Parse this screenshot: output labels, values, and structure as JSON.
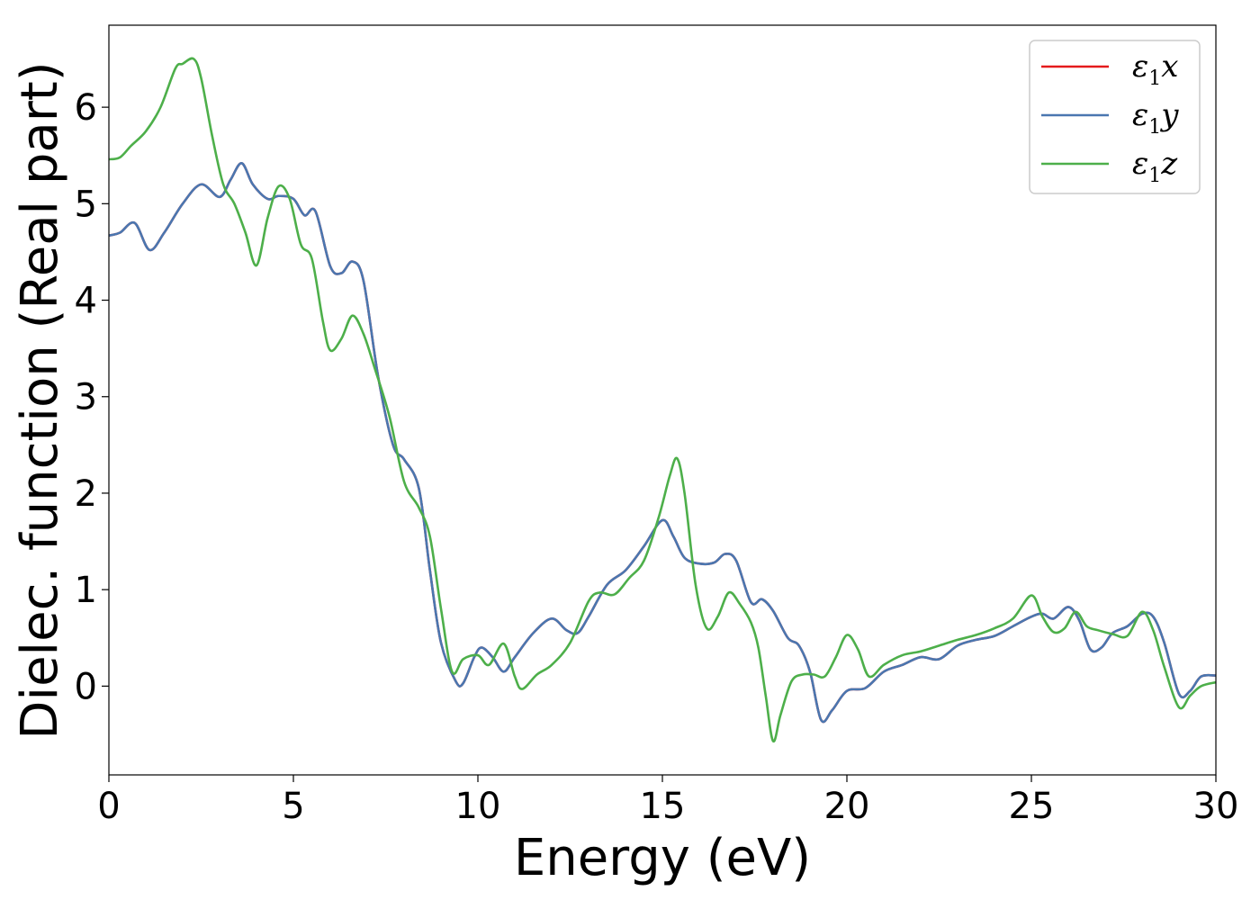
{
  "chart_data": {
    "type": "line",
    "xlabel": "Energy (eV)",
    "ylabel": "Dielec. function (Real part)",
    "xlim": [
      0,
      30
    ],
    "ylim": [
      -0.92,
      6.85
    ],
    "xticks": [
      0,
      5,
      10,
      15,
      20,
      25,
      30
    ],
    "yticks": [
      0,
      1,
      2,
      3,
      4,
      5,
      6
    ],
    "grid": false,
    "legend_position": "top-right",
    "series": [
      {
        "name": "ε1x",
        "legend_main": "ε",
        "legend_sub": "1",
        "legend_var": "x",
        "color": "#e41a1c",
        "x": [
          0,
          0.3,
          0.7,
          1.1,
          1.5,
          2.0,
          2.5,
          3.0,
          3.3,
          3.6,
          3.9,
          4.3,
          4.6,
          5.0,
          5.3,
          5.6,
          6.0,
          6.3,
          6.6,
          6.9,
          7.3,
          7.7,
          8.0,
          8.4,
          8.7,
          9.0,
          9.4,
          9.6,
          9.9,
          10.1,
          10.4,
          10.7,
          11.0,
          11.5,
          12.0,
          12.4,
          12.7,
          13.0,
          13.5,
          14.0,
          14.5,
          15.0,
          15.3,
          15.6,
          16.0,
          16.4,
          16.7,
          17.0,
          17.4,
          17.7,
          18.0,
          18.4,
          18.7,
          19.0,
          19.3,
          19.6,
          20.0,
          20.5,
          21.0,
          21.5,
          22.0,
          22.5,
          23.0,
          23.5,
          24.0,
          24.5,
          25.0,
          25.3,
          25.6,
          26.0,
          26.3,
          26.6,
          26.9,
          27.2,
          27.6,
          28.0,
          28.3,
          28.6,
          29.0,
          29.3,
          29.6,
          30.0
        ],
        "y": [
          4.67,
          4.7,
          4.8,
          4.52,
          4.7,
          5.0,
          5.2,
          5.07,
          5.25,
          5.42,
          5.2,
          5.05,
          5.08,
          5.05,
          4.88,
          4.92,
          4.35,
          4.28,
          4.4,
          4.2,
          3.2,
          2.5,
          2.35,
          2.05,
          1.2,
          0.45,
          0.05,
          0.03,
          0.3,
          0.4,
          0.3,
          0.15,
          0.3,
          0.55,
          0.7,
          0.58,
          0.55,
          0.72,
          1.05,
          1.2,
          1.45,
          1.72,
          1.55,
          1.33,
          1.27,
          1.28,
          1.37,
          1.3,
          0.87,
          0.9,
          0.78,
          0.5,
          0.42,
          0.15,
          -0.35,
          -0.25,
          -0.05,
          -0.02,
          0.15,
          0.22,
          0.3,
          0.28,
          0.42,
          0.48,
          0.52,
          0.62,
          0.72,
          0.75,
          0.7,
          0.82,
          0.68,
          0.38,
          0.4,
          0.55,
          0.62,
          0.75,
          0.72,
          0.45,
          -0.08,
          -0.05,
          0.1,
          0.11
        ]
      },
      {
        "name": "ε1y",
        "legend_main": "ε",
        "legend_sub": "1",
        "legend_var": "y",
        "color": "#4a77b0",
        "x": [
          0,
          0.3,
          0.7,
          1.1,
          1.5,
          2.0,
          2.5,
          3.0,
          3.3,
          3.6,
          3.9,
          4.3,
          4.6,
          5.0,
          5.3,
          5.6,
          6.0,
          6.3,
          6.6,
          6.9,
          7.3,
          7.7,
          8.0,
          8.4,
          8.7,
          9.0,
          9.4,
          9.6,
          9.9,
          10.1,
          10.4,
          10.7,
          11.0,
          11.5,
          12.0,
          12.4,
          12.7,
          13.0,
          13.5,
          14.0,
          14.5,
          15.0,
          15.3,
          15.6,
          16.0,
          16.4,
          16.7,
          17.0,
          17.4,
          17.7,
          18.0,
          18.4,
          18.7,
          19.0,
          19.3,
          19.6,
          20.0,
          20.5,
          21.0,
          21.5,
          22.0,
          22.5,
          23.0,
          23.5,
          24.0,
          24.5,
          25.0,
          25.3,
          25.6,
          26.0,
          26.3,
          26.6,
          26.9,
          27.2,
          27.6,
          28.0,
          28.3,
          28.6,
          29.0,
          29.3,
          29.6,
          30.0
        ],
        "y": [
          4.67,
          4.7,
          4.8,
          4.52,
          4.7,
          5.0,
          5.2,
          5.07,
          5.25,
          5.42,
          5.2,
          5.05,
          5.08,
          5.05,
          4.88,
          4.92,
          4.35,
          4.28,
          4.4,
          4.2,
          3.2,
          2.5,
          2.35,
          2.05,
          1.2,
          0.45,
          0.05,
          0.03,
          0.3,
          0.4,
          0.3,
          0.15,
          0.3,
          0.55,
          0.7,
          0.58,
          0.55,
          0.72,
          1.05,
          1.2,
          1.45,
          1.72,
          1.55,
          1.33,
          1.27,
          1.28,
          1.37,
          1.3,
          0.87,
          0.9,
          0.78,
          0.5,
          0.42,
          0.15,
          -0.35,
          -0.25,
          -0.05,
          -0.02,
          0.15,
          0.22,
          0.3,
          0.28,
          0.42,
          0.48,
          0.52,
          0.62,
          0.72,
          0.75,
          0.7,
          0.82,
          0.68,
          0.38,
          0.4,
          0.55,
          0.62,
          0.75,
          0.72,
          0.45,
          -0.08,
          -0.05,
          0.1,
          0.11
        ]
      },
      {
        "name": "ε1z",
        "legend_main": "ε",
        "legend_sub": "1",
        "legend_var": "z",
        "color": "#4daf4a",
        "x": [
          0,
          0.3,
          0.6,
          1.0,
          1.4,
          1.8,
          2.0,
          2.3,
          2.5,
          2.8,
          3.1,
          3.4,
          3.7,
          4.0,
          4.3,
          4.6,
          4.9,
          5.2,
          5.5,
          5.8,
          6.0,
          6.3,
          6.6,
          6.9,
          7.2,
          7.6,
          8.0,
          8.4,
          8.7,
          9.0,
          9.3,
          9.6,
          10.0,
          10.3,
          10.7,
          11.0,
          11.2,
          11.6,
          12.0,
          12.5,
          13.0,
          13.3,
          13.7,
          14.1,
          14.5,
          14.9,
          15.2,
          15.4,
          15.6,
          15.9,
          16.2,
          16.5,
          16.8,
          17.1,
          17.4,
          17.6,
          17.8,
          18.0,
          18.2,
          18.5,
          18.8,
          19.1,
          19.4,
          19.7,
          20.0,
          20.3,
          20.6,
          21.0,
          21.5,
          22.0,
          22.5,
          23.0,
          23.5,
          24.0,
          24.5,
          25.0,
          25.3,
          25.6,
          25.9,
          26.2,
          26.5,
          26.8,
          27.2,
          27.6,
          28.0,
          28.3,
          28.6,
          29.0,
          29.3,
          29.6,
          30.0
        ],
        "y": [
          5.46,
          5.48,
          5.6,
          5.75,
          6.0,
          6.4,
          6.45,
          6.5,
          6.3,
          5.7,
          5.2,
          5.0,
          4.7,
          4.36,
          4.85,
          5.18,
          5.05,
          4.58,
          4.43,
          3.78,
          3.48,
          3.6,
          3.84,
          3.65,
          3.3,
          2.8,
          2.12,
          1.85,
          1.55,
          0.8,
          0.15,
          0.28,
          0.32,
          0.22,
          0.44,
          0.1,
          -0.03,
          0.12,
          0.22,
          0.45,
          0.88,
          0.97,
          0.95,
          1.12,
          1.3,
          1.75,
          2.18,
          2.36,
          2.0,
          1.05,
          0.6,
          0.72,
          0.97,
          0.85,
          0.66,
          0.4,
          -0.1,
          -0.57,
          -0.3,
          0.05,
          0.12,
          0.12,
          0.1,
          0.3,
          0.53,
          0.38,
          0.1,
          0.22,
          0.32,
          0.36,
          0.42,
          0.48,
          0.53,
          0.6,
          0.7,
          0.94,
          0.72,
          0.56,
          0.6,
          0.77,
          0.62,
          0.58,
          0.54,
          0.52,
          0.77,
          0.58,
          0.2,
          -0.22,
          -0.1,
          0.0,
          0.04
        ]
      }
    ]
  }
}
